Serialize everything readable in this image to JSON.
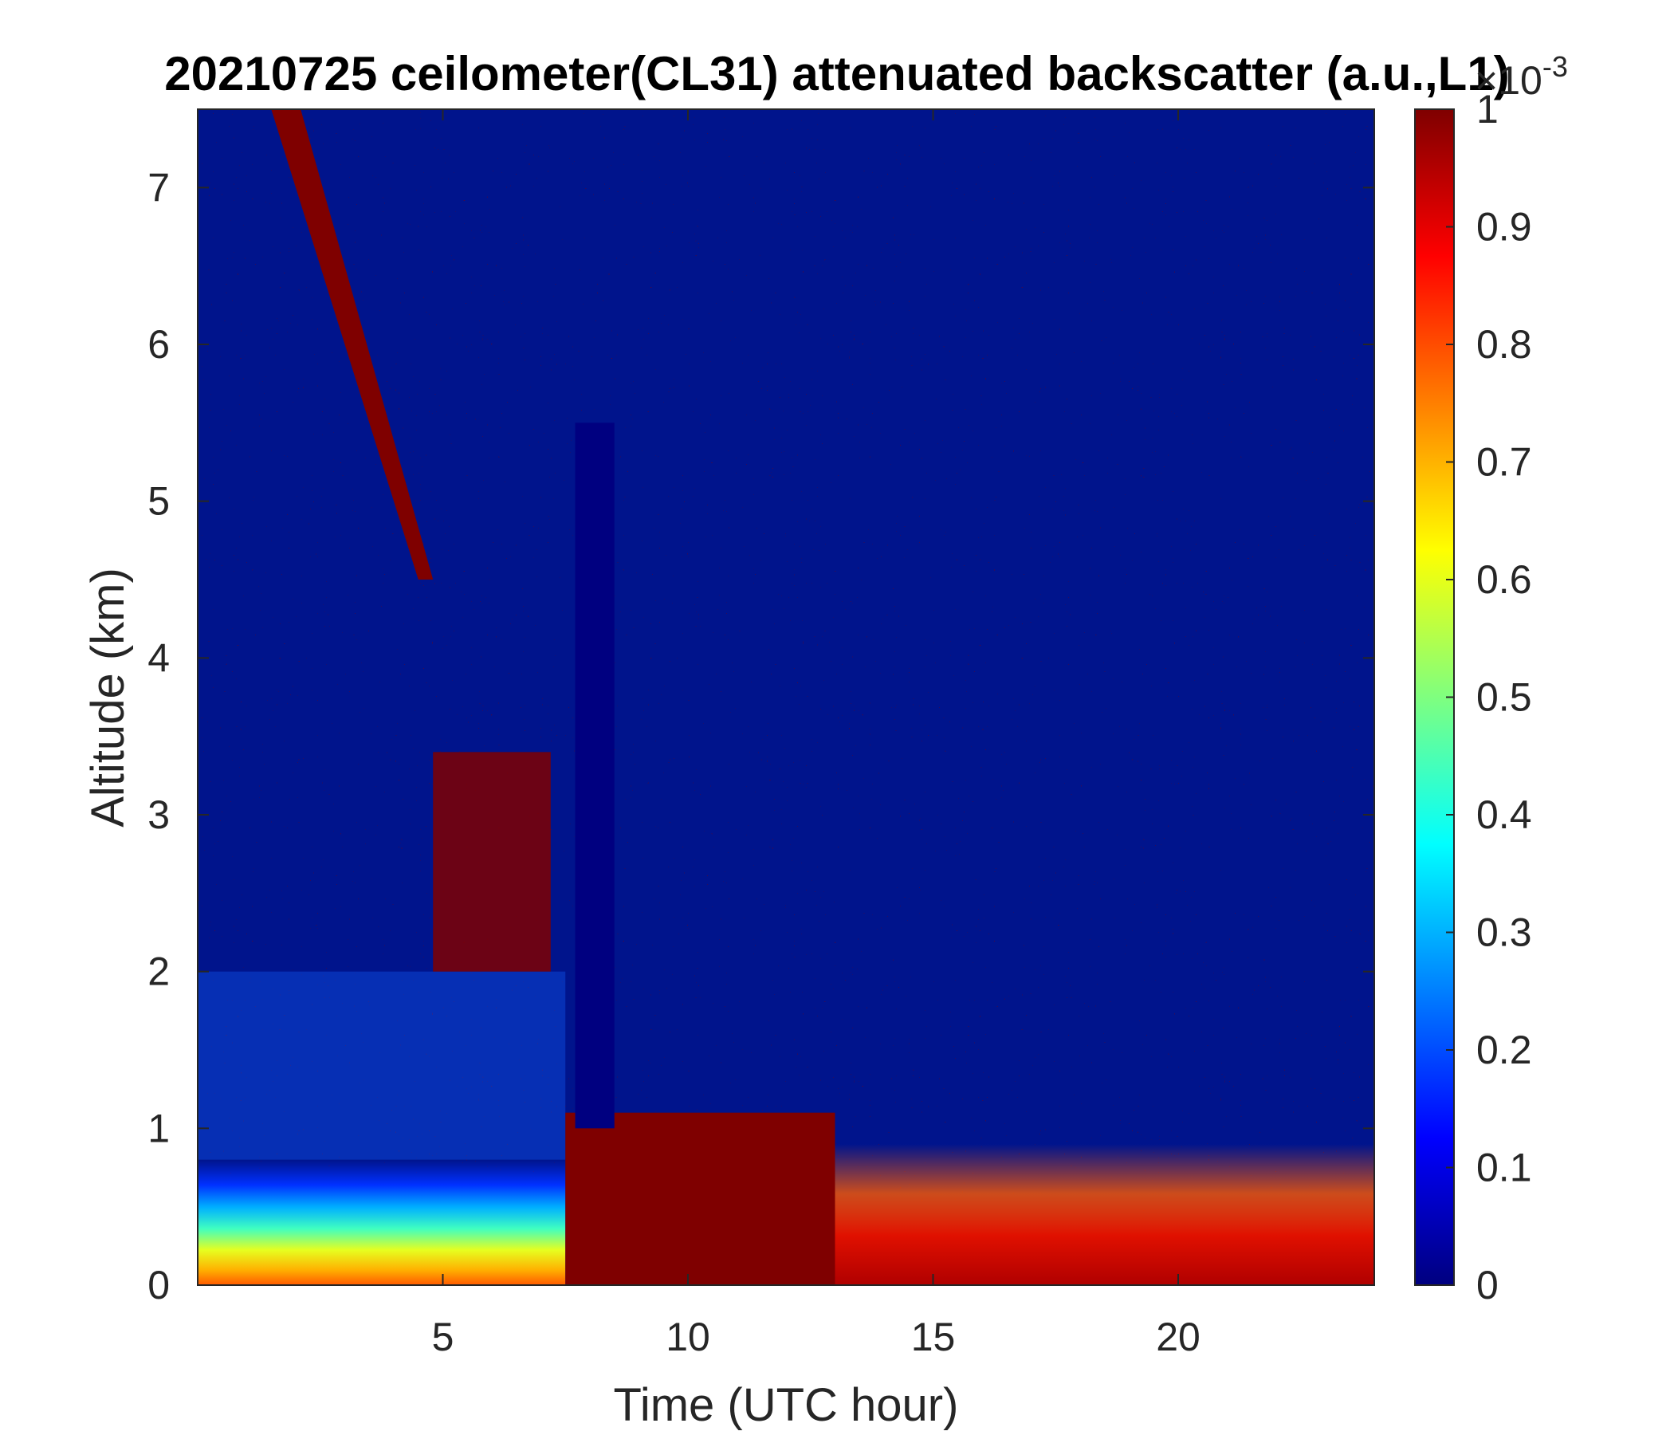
{
  "chart_data": {
    "type": "heatmap",
    "title": "20210725 ceilometer(CL31) attenuated backscatter (a.u.,L1)",
    "xlabel": "Time (UTC hour)",
    "ylabel": "Altitude (km)",
    "xlim": [
      0,
      24
    ],
    "ylim": [
      0,
      7.5
    ],
    "x_ticks": [
      5,
      10,
      15,
      20
    ],
    "y_ticks": [
      0,
      1,
      2,
      3,
      4,
      5,
      6,
      7
    ],
    "colorbar": {
      "colormap": "jet",
      "clim": [
        0,
        1
      ],
      "exponent_label": "×10",
      "exponent_power": "-3",
      "ticks": [
        0,
        0.1,
        0.2,
        0.3,
        0.4,
        0.5,
        0.6,
        0.7,
        0.8,
        0.9,
        1
      ],
      "colors": [
        "#00007f",
        "#0000ff",
        "#007fff",
        "#00ffff",
        "#7fff7f",
        "#ffff00",
        "#ff7f00",
        "#ff0000",
        "#7f0000"
      ]
    },
    "features": [
      {
        "name": "surface aerosol layer",
        "x_range": [
          0,
          7.5
        ],
        "y_range": [
          0,
          0.8
        ],
        "value_range": [
          0.3,
          0.8
        ]
      },
      {
        "name": "elevated aerosol layer",
        "x_range": [
          0,
          7.5
        ],
        "y_range": [
          0.8,
          2.0
        ],
        "value_range": [
          0.1,
          0.5
        ]
      },
      {
        "name": "rain / saturated signal",
        "x_range": [
          7.5,
          13
        ],
        "y_range": [
          0,
          1.1
        ],
        "value_range": [
          1,
          1
        ]
      },
      {
        "name": "signal void",
        "x_range": [
          7.7,
          8.5
        ],
        "y_range": [
          1,
          5.5
        ],
        "value_range": [
          0,
          0.05
        ]
      },
      {
        "name": "afternoon boundary layer",
        "x_range": [
          13,
          24
        ],
        "y_range": [
          0,
          0.9
        ],
        "value_range": [
          0.8,
          1
        ]
      },
      {
        "name": "high cloud streak",
        "x_range": [
          1.5,
          4.8
        ],
        "y_range": [
          4.5,
          7.5
        ],
        "value_range": [
          1,
          1
        ]
      },
      {
        "name": "mid-level cloud",
        "x_range": [
          4.8,
          7.2
        ],
        "y_range": [
          2.0,
          3.4
        ],
        "value_range": [
          1,
          1
        ]
      }
    ]
  }
}
